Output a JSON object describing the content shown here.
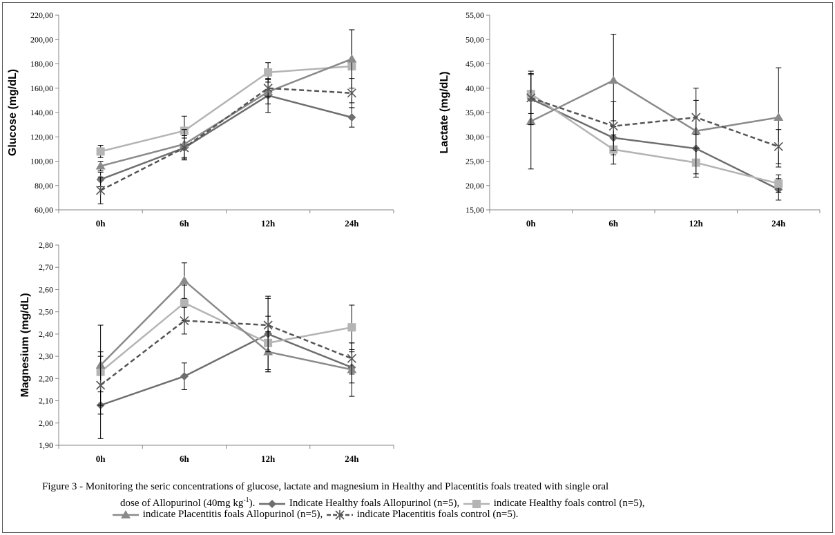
{
  "chart_data": [
    {
      "type": "line",
      "categories": [
        "0h",
        "6h",
        "12h",
        "24h"
      ],
      "ylabel": "Glucose (mg/dL)",
      "ylim": [
        60,
        220
      ],
      "yticks": [
        "60,00",
        "80,00",
        "100,00",
        "120,00",
        "140,00",
        "160,00",
        "180,00",
        "200,00",
        "220,00"
      ],
      "series": [
        {
          "values": [
            85,
            111,
            154,
            136
          ],
          "err": [
            6,
            8,
            14,
            8
          ],
          "color": "#6e6e6e",
          "marker": "diamond",
          "dash": false
        },
        {
          "values": [
            108,
            125,
            173,
            178
          ],
          "err": [
            5,
            12,
            8,
            30
          ],
          "color": "#b4b4b4",
          "marker": "square",
          "dash": false
        },
        {
          "values": [
            96,
            114,
            157,
            184
          ],
          "err": [
            4,
            12,
            10,
            24
          ],
          "color": "#8a8a8a",
          "marker": "triangle",
          "dash": false
        },
        {
          "values": [
            76,
            111,
            160,
            156
          ],
          "err": [
            11,
            10,
            7,
            12
          ],
          "color": "#555555",
          "marker": "cross",
          "dash": true
        }
      ]
    },
    {
      "type": "line",
      "categories": [
        "0h",
        "6h",
        "12h",
        "24h"
      ],
      "ylabel": "Lactate (mg/dL)",
      "ylim": [
        15,
        55
      ],
      "yticks": [
        "15,00",
        "20,00",
        "25,00",
        "30,00",
        "35,00",
        "40,00",
        "45,00",
        "50,00",
        "55,00"
      ],
      "series": [
        {
          "values": [
            37.8,
            29.8,
            27.6,
            19.2
          ],
          "err": [
            5.0,
            3.5,
            3.0,
            2.2
          ],
          "color": "#6e6e6e",
          "marker": "diamond",
          "dash": false
        },
        {
          "values": [
            38.8,
            27.4,
            24.7,
            20.4
          ],
          "err": [
            4.0,
            3.0,
            3.0,
            1.8
          ],
          "color": "#b4b4b4",
          "marker": "square",
          "dash": false
        },
        {
          "values": [
            33.2,
            41.6,
            31.2,
            34.0
          ],
          "err": [
            9.8,
            9.5,
            8.8,
            10.2
          ],
          "color": "#8a8a8a",
          "marker": "triangle",
          "dash": false
        },
        {
          "values": [
            38.0,
            32.2,
            34.0,
            28.0
          ],
          "err": [
            5.5,
            5.0,
            3.5,
            3.5
          ],
          "color": "#555555",
          "marker": "cross",
          "dash": true
        }
      ]
    },
    {
      "type": "line",
      "categories": [
        "0h",
        "6h",
        "12h",
        "24h"
      ],
      "ylabel": "Magnesium (mg/dL)",
      "ylim": [
        1.9,
        2.8
      ],
      "yticks": [
        "1,90",
        "2,00",
        "2,10",
        "2,20",
        "2,30",
        "2,40",
        "2,50",
        "2,60",
        "2,70",
        "2,80"
      ],
      "series": [
        {
          "values": [
            2.08,
            2.21,
            2.4,
            2.25
          ],
          "err": [
            0.15,
            0.06,
            0.17,
            0.07
          ],
          "color": "#6e6e6e",
          "marker": "diamond",
          "dash": false
        },
        {
          "values": [
            2.23,
            2.54,
            2.36,
            2.43
          ],
          "err": [
            0.09,
            0.08,
            0.12,
            0.1
          ],
          "color": "#b4b4b4",
          "marker": "square",
          "dash": false
        },
        {
          "values": [
            2.26,
            2.64,
            2.32,
            2.24
          ],
          "err": [
            0.18,
            0.08,
            0.09,
            0.12
          ],
          "color": "#8a8a8a",
          "marker": "triangle",
          "dash": false
        },
        {
          "values": [
            2.17,
            2.46,
            2.44,
            2.29
          ],
          "err": [
            0.13,
            0.06,
            0.12,
            0.07
          ],
          "color": "#555555",
          "marker": "cross",
          "dash": true
        }
      ]
    }
  ],
  "caption": {
    "line1": "Figure 3 - Monitoring the seric concentrations of glucose, lactate and magnesium in Healthy and Placentitis foals treated with single oral",
    "line2_pre": "dose of Allopurinol (40mg kg",
    "line2_sup": "-1",
    "line2_post": ").",
    "legend": [
      "Indicate Healthy foals Allopurinol (n=5),",
      "indicate Healthy foals control (n=5),",
      "indicate Placentitis foals Allopurinol (n=5),",
      "indicate Placentitis foals control (n=5)."
    ]
  }
}
